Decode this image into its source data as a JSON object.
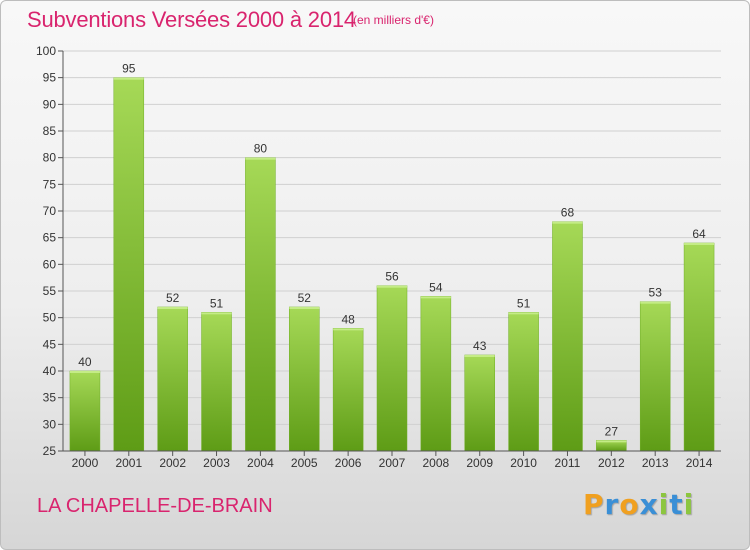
{
  "title": "Subventions Versées 2000 à 2014",
  "subtitle": "(en milliers d'€)",
  "commune": "LA CHAPELLE-DE-BRAIN",
  "logo": {
    "letters": [
      "P",
      "r",
      "o",
      "x",
      "i",
      "t",
      "i"
    ],
    "colors": [
      "#f0a020",
      "#3a8fd6",
      "#f0a020",
      "#3a8fd6",
      "#8cc63f",
      "#3a8fd6",
      "#8cc63f"
    ]
  },
  "colors": {
    "title": "#d9246e",
    "bar_light": "#9fd34f",
    "bar_dark": "#5e9c16",
    "grid": "#d0d0d0",
    "axis": "#555555"
  },
  "chart_data": {
    "type": "bar",
    "title": "Subventions Versées 2000 à 2014",
    "subtitle": "(en milliers d'€)",
    "xlabel": "",
    "ylabel": "",
    "categories": [
      "2000",
      "2001",
      "2002",
      "2003",
      "2004",
      "2005",
      "2006",
      "2007",
      "2008",
      "2009",
      "2010",
      "2011",
      "2012",
      "2013",
      "2014"
    ],
    "values": [
      40,
      95,
      52,
      51,
      80,
      52,
      48,
      56,
      54,
      43,
      51,
      68,
      27,
      53,
      64
    ],
    "ylim": [
      25,
      100
    ],
    "yticks": [
      25,
      30,
      35,
      40,
      45,
      50,
      55,
      60,
      65,
      70,
      75,
      80,
      85,
      90,
      95,
      100
    ],
    "grid": true,
    "data_labels": true
  }
}
